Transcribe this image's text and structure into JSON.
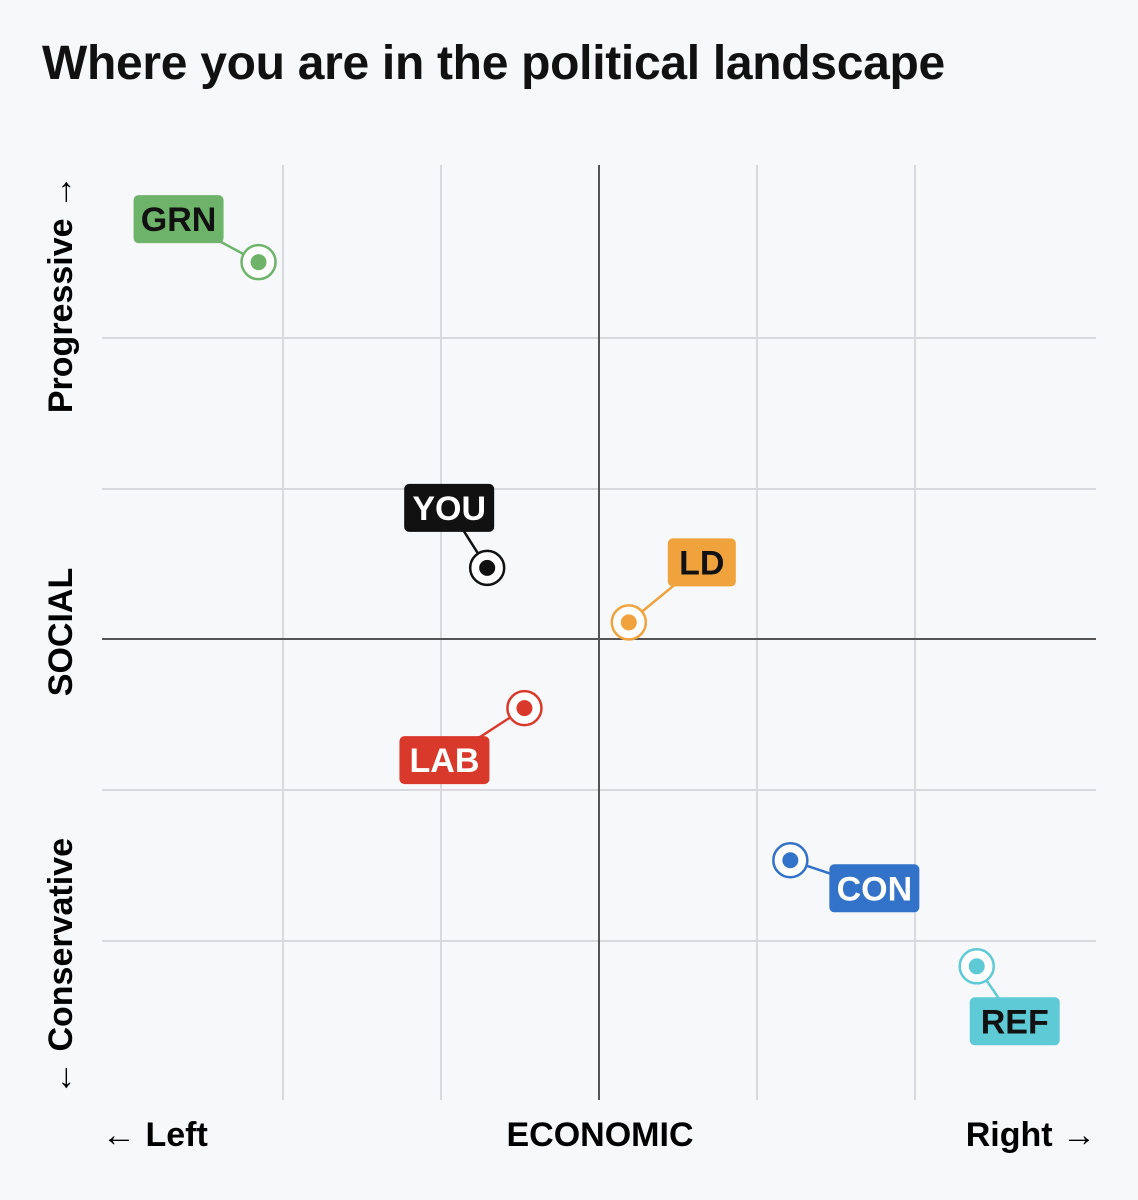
{
  "title": "Where you are in the political landscape",
  "chart_data": {
    "type": "scatter",
    "title": "Where you are in the political landscape",
    "xlabel": "ECONOMIC",
    "ylabel": "SOCIAL",
    "x_left_label": "← Left",
    "x_right_label": "Right →",
    "y_top_label": "Progressive →",
    "y_bottom_label": "← Conservative",
    "xlim": [
      -10,
      10
    ],
    "ylim": [
      -10,
      10
    ],
    "grid": true,
    "points": [
      {
        "label": "GRN",
        "x": -6.85,
        "y": 7.95,
        "color": "#6db36a",
        "text_color": "#111111",
        "fill": "#6db36a"
      },
      {
        "label": "YOU",
        "x": -2.25,
        "y": 1.5,
        "color": "#111111",
        "text_color": "#ffffff",
        "fill": "#111111"
      },
      {
        "label": "LD",
        "x": 0.6,
        "y": 0.35,
        "color": "#f0a23c",
        "text_color": "#111111",
        "fill": "#f0a23c"
      },
      {
        "label": "LAB",
        "x": -1.5,
        "y": -1.5,
        "color": "#d9392b",
        "text_color": "#ffffff",
        "fill": "#d9392b"
      },
      {
        "label": "CON",
        "x": 3.85,
        "y": -4.8,
        "color": "#3272c8",
        "text_color": "#ffffff",
        "fill": "#3272c8"
      },
      {
        "label": "REF",
        "x": 7.6,
        "y": -7.1,
        "color": "#5ecad6",
        "text_color": "#111111",
        "fill": "#5ecad6"
      }
    ]
  }
}
